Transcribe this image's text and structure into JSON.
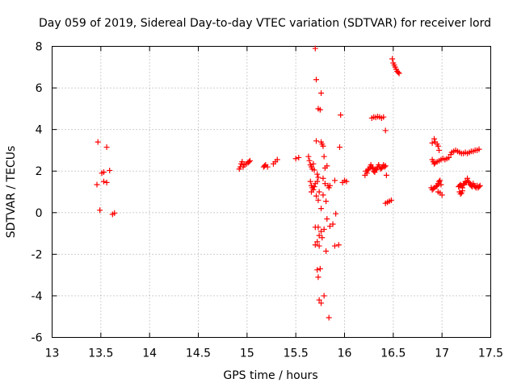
{
  "chart_data": {
    "type": "scatter",
    "title": "Day 059 of 2019, Sidereal Day-to-day VTEC variation (SDTVAR) for receiver lord",
    "xlabel": "GPS time / hours",
    "ylabel": "SDTVAR / TECUs",
    "xlim": [
      13,
      17.5
    ],
    "ylim": [
      -6,
      8
    ],
    "xticks": [
      "13",
      "13.5",
      "14",
      "14.5",
      "15",
      "15.5",
      "16",
      "16.5",
      "17",
      "17.5"
    ],
    "yticks": [
      "-6",
      "-4",
      "-2",
      "0",
      "2",
      "4",
      "6",
      "8"
    ],
    "grid": true,
    "marker": "+",
    "marker_color": "#ff0000",
    "series": [
      {
        "name": "SDTVAR",
        "points": [
          [
            13.47,
            3.4
          ],
          [
            13.56,
            3.15
          ],
          [
            13.51,
            1.9
          ],
          [
            13.53,
            1.95
          ],
          [
            13.59,
            2.03
          ],
          [
            13.46,
            1.35
          ],
          [
            13.53,
            1.5
          ],
          [
            13.56,
            1.45
          ],
          [
            13.49,
            0.12
          ],
          [
            13.62,
            -0.08
          ],
          [
            13.64,
            -0.02
          ],
          [
            14.92,
            2.1
          ],
          [
            14.93,
            2.2
          ],
          [
            14.94,
            2.35
          ],
          [
            14.95,
            2.45
          ],
          [
            14.97,
            2.3
          ],
          [
            14.99,
            2.35
          ],
          [
            15.01,
            2.4
          ],
          [
            15.03,
            2.5
          ],
          [
            14.96,
            2.2
          ],
          [
            15.02,
            2.45
          ],
          [
            15.17,
            2.2
          ],
          [
            15.18,
            2.25
          ],
          [
            15.19,
            2.3
          ],
          [
            15.21,
            2.2
          ],
          [
            15.27,
            2.35
          ],
          [
            15.29,
            2.45
          ],
          [
            15.31,
            2.55
          ],
          [
            15.5,
            2.6
          ],
          [
            15.53,
            2.65
          ],
          [
            15.63,
            2.7
          ],
          [
            15.64,
            2.5
          ],
          [
            15.65,
            2.3
          ],
          [
            15.66,
            2.2
          ],
          [
            15.67,
            2.1
          ],
          [
            15.68,
            2.35
          ],
          [
            15.69,
            2.05
          ],
          [
            15.65,
            1.5
          ],
          [
            15.66,
            1.3
          ],
          [
            15.67,
            1.2
          ],
          [
            15.68,
            1.1
          ],
          [
            15.69,
            1.25
          ],
          [
            15.7,
            1.4
          ],
          [
            15.66,
            1.0
          ],
          [
            15.72,
            1.5
          ],
          [
            15.73,
            1.7
          ],
          [
            15.72,
            1.85
          ],
          [
            15.7,
            7.9
          ],
          [
            15.71,
            6.4
          ],
          [
            15.76,
            5.75
          ],
          [
            15.73,
            5.0
          ],
          [
            15.75,
            4.95
          ],
          [
            15.71,
            3.45
          ],
          [
            15.76,
            3.4
          ],
          [
            15.77,
            3.3
          ],
          [
            15.78,
            3.2
          ],
          [
            15.79,
            2.7
          ],
          [
            15.8,
            2.15
          ],
          [
            15.82,
            2.25
          ],
          [
            15.78,
            1.65
          ],
          [
            15.8,
            1.4
          ],
          [
            15.83,
            1.3
          ],
          [
            15.85,
            1.3
          ],
          [
            15.84,
            1.2
          ],
          [
            15.71,
            0.8
          ],
          [
            15.74,
            1.0
          ],
          [
            15.78,
            0.85
          ],
          [
            15.81,
            0.55
          ],
          [
            15.73,
            0.6
          ],
          [
            15.76,
            0.2
          ],
          [
            15.7,
            -0.7
          ],
          [
            15.73,
            -0.7
          ],
          [
            15.76,
            -0.9
          ],
          [
            15.79,
            -0.8
          ],
          [
            15.82,
            -0.3
          ],
          [
            15.85,
            -0.65
          ],
          [
            15.88,
            -0.55
          ],
          [
            15.91,
            -0.05
          ],
          [
            15.74,
            -1.1
          ],
          [
            15.77,
            -1.2
          ],
          [
            15.72,
            -1.4
          ],
          [
            15.7,
            -1.55
          ],
          [
            15.74,
            -1.6
          ],
          [
            15.81,
            -1.85
          ],
          [
            15.9,
            -1.6
          ],
          [
            15.94,
            -1.55
          ],
          [
            15.72,
            -2.75
          ],
          [
            15.75,
            -2.7
          ],
          [
            15.73,
            -3.1
          ],
          [
            15.74,
            -4.2
          ],
          [
            15.76,
            -4.35
          ],
          [
            15.79,
            -4.0
          ],
          [
            15.84,
            -5.05
          ],
          [
            15.9,
            1.55
          ],
          [
            15.95,
            3.15
          ],
          [
            15.96,
            4.7
          ],
          [
            15.98,
            1.45
          ],
          [
            16.0,
            1.55
          ],
          [
            16.02,
            1.5
          ],
          [
            16.21,
            1.8
          ],
          [
            16.22,
            2.0
          ],
          [
            16.23,
            1.9
          ],
          [
            16.24,
            2.05
          ],
          [
            16.25,
            2.1
          ],
          [
            16.26,
            2.2
          ],
          [
            16.27,
            2.3
          ],
          [
            16.28,
            2.2
          ],
          [
            16.29,
            2.15
          ],
          [
            16.3,
            2.0
          ],
          [
            16.31,
            1.95
          ],
          [
            16.32,
            2.05
          ],
          [
            16.33,
            2.1
          ],
          [
            16.34,
            2.2
          ],
          [
            16.35,
            2.3
          ],
          [
            16.36,
            2.2
          ],
          [
            16.37,
            2.1
          ],
          [
            16.38,
            2.15
          ],
          [
            16.39,
            2.2
          ],
          [
            16.4,
            2.3
          ],
          [
            16.41,
            2.2
          ],
          [
            16.42,
            2.25
          ],
          [
            16.43,
            1.8
          ],
          [
            16.28,
            4.55
          ],
          [
            16.3,
            4.6
          ],
          [
            16.32,
            4.58
          ],
          [
            16.34,
            4.62
          ],
          [
            16.36,
            4.6
          ],
          [
            16.38,
            4.55
          ],
          [
            16.4,
            4.6
          ],
          [
            16.42,
            3.95
          ],
          [
            16.49,
            7.4
          ],
          [
            16.5,
            7.2
          ],
          [
            16.51,
            7.1
          ],
          [
            16.52,
            7.0
          ],
          [
            16.53,
            6.9
          ],
          [
            16.54,
            6.8
          ],
          [
            16.55,
            6.75
          ],
          [
            16.56,
            6.7
          ],
          [
            16.42,
            0.45
          ],
          [
            16.44,
            0.5
          ],
          [
            16.46,
            0.55
          ],
          [
            16.48,
            0.6
          ],
          [
            16.9,
            3.35
          ],
          [
            16.92,
            3.55
          ],
          [
            16.93,
            3.4
          ],
          [
            16.95,
            3.3
          ],
          [
            16.96,
            3.2
          ],
          [
            16.97,
            3.0
          ],
          [
            16.9,
            2.55
          ],
          [
            16.91,
            2.45
          ],
          [
            16.92,
            2.35
          ],
          [
            16.93,
            2.4
          ],
          [
            16.95,
            2.45
          ],
          [
            16.97,
            2.5
          ],
          [
            16.99,
            2.55
          ],
          [
            17.01,
            2.6
          ],
          [
            17.03,
            2.55
          ],
          [
            17.05,
            2.6
          ],
          [
            17.07,
            2.65
          ],
          [
            16.89,
            1.2
          ],
          [
            16.9,
            1.1
          ],
          [
            16.91,
            1.15
          ],
          [
            16.92,
            1.2
          ],
          [
            16.94,
            1.25
          ],
          [
            16.95,
            1.3
          ],
          [
            16.96,
            1.4
          ],
          [
            16.97,
            1.5
          ],
          [
            16.98,
            1.55
          ],
          [
            16.99,
            1.35
          ],
          [
            16.98,
            0.95
          ],
          [
            17.0,
            0.85
          ],
          [
            16.96,
            1.0
          ],
          [
            17.09,
            2.8
          ],
          [
            17.1,
            2.9
          ],
          [
            17.12,
            2.95
          ],
          [
            17.14,
            3.0
          ],
          [
            17.16,
            2.95
          ],
          [
            17.18,
            2.9
          ],
          [
            17.2,
            2.85
          ],
          [
            17.22,
            2.85
          ],
          [
            17.24,
            2.9
          ],
          [
            17.26,
            2.85
          ],
          [
            17.28,
            2.9
          ],
          [
            17.3,
            2.95
          ],
          [
            17.32,
            2.95
          ],
          [
            17.34,
            3.0
          ],
          [
            17.36,
            3.0
          ],
          [
            17.38,
            3.05
          ],
          [
            17.17,
            1.25
          ],
          [
            17.18,
            1.3
          ],
          [
            17.19,
            1.35
          ],
          [
            17.2,
            1.3
          ],
          [
            17.21,
            1.2
          ],
          [
            17.22,
            1.35
          ],
          [
            17.23,
            1.4
          ],
          [
            17.24,
            1.5
          ],
          [
            17.25,
            1.45
          ],
          [
            17.26,
            1.65
          ],
          [
            17.27,
            1.5
          ],
          [
            17.28,
            1.45
          ],
          [
            17.29,
            1.35
          ],
          [
            17.3,
            1.3
          ],
          [
            17.31,
            1.25
          ],
          [
            17.32,
            1.4
          ],
          [
            17.33,
            1.3
          ],
          [
            17.34,
            1.25
          ],
          [
            17.35,
            1.2
          ],
          [
            17.36,
            1.3
          ],
          [
            17.37,
            1.2
          ],
          [
            17.38,
            1.25
          ],
          [
            17.39,
            1.3
          ],
          [
            17.18,
            1.0
          ],
          [
            17.19,
            0.9
          ],
          [
            17.2,
            0.95
          ],
          [
            17.21,
            1.05
          ]
        ]
      }
    ]
  }
}
